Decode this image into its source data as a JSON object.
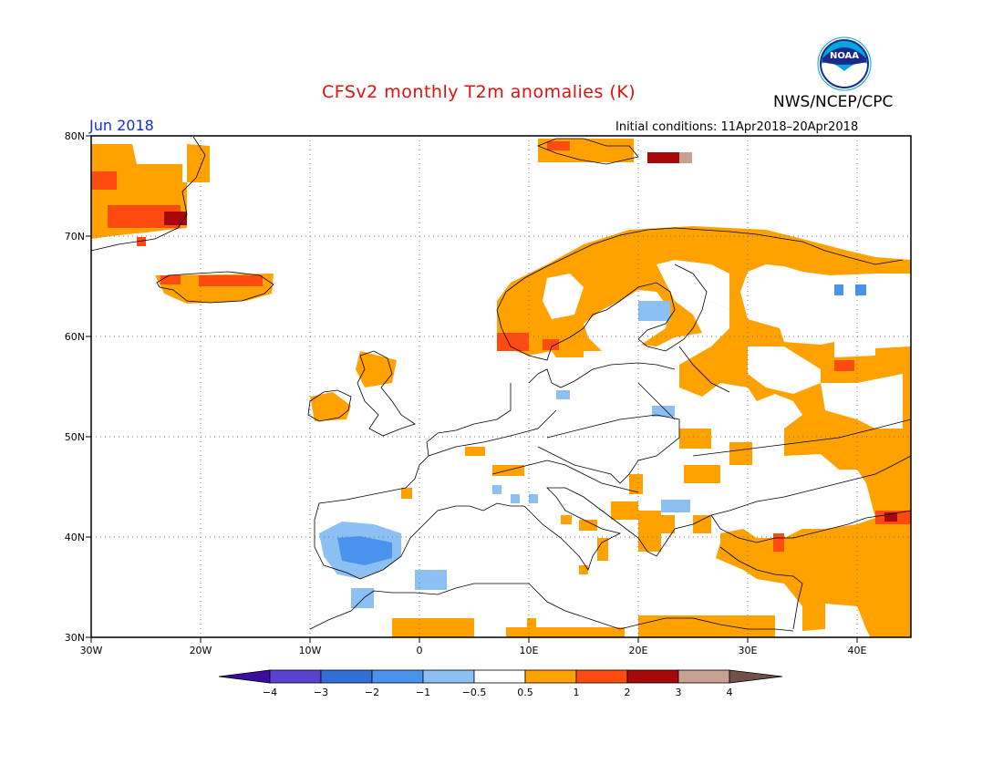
{
  "header": {
    "title": "CFSv2 monthly T2m anomalies (K)",
    "agency": "NWS/NCEP/CPC",
    "logo_text": "NOAA",
    "month": "Jun 2018",
    "initial_conditions": "Initial conditions: 11Apr2018–20Apr2018"
  },
  "map": {
    "lon_range": [
      -30,
      45
    ],
    "lat_range": [
      30,
      80
    ],
    "lat_labels": [
      "80N",
      "70N",
      "60N",
      "50N",
      "40N",
      "30N"
    ],
    "lon_labels": [
      "30W",
      "20W",
      "10W",
      "0",
      "10E",
      "20E",
      "30E",
      "40E"
    ]
  },
  "colorbar": {
    "labels": [
      "−4",
      "−3",
      "−2",
      "−1",
      "−0.5",
      "0.5",
      "1",
      "2",
      "3",
      "4"
    ],
    "colors": [
      "#3a0fa0",
      "#5a42d0",
      "#2f6fd6",
      "#4a93ec",
      "#8cc0f2",
      "#ffffff",
      "#ffa200",
      "#ff4a10",
      "#a80808",
      "#c8a090",
      "#705048"
    ]
  }
}
